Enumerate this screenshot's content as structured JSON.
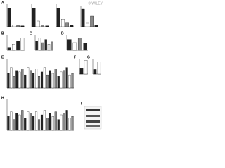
{
  "watermark": "© WILEY",
  "chart_data": [
    {
      "type": "bar",
      "label": "A",
      "values": [
        100,
        8,
        6,
        5
      ],
      "ylim": [
        0,
        120
      ],
      "colors": [
        "#222222",
        "#ffffff",
        "#888888"
      ]
    },
    {
      "type": "bar",
      "values": [
        100,
        30,
        10,
        5
      ],
      "ylim": [
        0,
        120
      ],
      "colors": [
        "#222222",
        "#ffffff",
        "#888888"
      ]
    },
    {
      "type": "bar",
      "values": [
        100,
        40,
        20,
        10
      ],
      "ylim": [
        0,
        120
      ],
      "colors": [
        "#222222",
        "#ffffff",
        "#888888"
      ]
    },
    {
      "type": "bar",
      "values": [
        100,
        20,
        60,
        10
      ],
      "ylim": [
        0,
        120
      ],
      "colors": [
        "#222222",
        "#ffffff",
        "#888888"
      ]
    },
    {
      "type": "bar",
      "label": "B",
      "values": [
        20,
        40,
        60,
        80
      ],
      "ylim": [
        0,
        100
      ],
      "colors": [
        "#222222",
        "#ffffff"
      ]
    },
    {
      "type": "bar",
      "label": "C",
      "values": [
        60,
        80,
        50,
        70,
        40,
        55
      ],
      "ylim": [
        0,
        100
      ],
      "colors": [
        "#222222",
        "#ffffff",
        "#888888"
      ]
    },
    {
      "type": "bar",
      "label": "D",
      "values": [
        70,
        50,
        80,
        45
      ],
      "ylim": [
        0,
        100
      ],
      "colors": [
        "#222222",
        "#ffffff",
        "#888888"
      ]
    },
    {
      "type": "bar",
      "label": "E",
      "values": [
        50,
        70,
        40,
        60,
        55,
        65,
        45,
        70,
        60,
        50,
        65,
        40,
        55,
        70,
        45,
        60,
        50,
        65,
        40,
        55,
        60,
        70,
        45,
        50
      ],
      "ylim": [
        0,
        100
      ],
      "colors": [
        "#222222",
        "#ffffff",
        "#888888"
      ]
    },
    {
      "type": "bar",
      "label": "F",
      "values": [
        40,
        90
      ],
      "ylim": [
        0,
        100
      ],
      "colors": [
        "#222222",
        "#ffffff"
      ]
    },
    {
      "type": "bar",
      "label": "G",
      "values": [
        30,
        80
      ],
      "ylim": [
        0,
        100
      ],
      "colors": [
        "#222222",
        "#ffffff"
      ]
    },
    {
      "type": "bar",
      "label": "H",
      "values": [
        45,
        60,
        35,
        55,
        50,
        65,
        40,
        60,
        55,
        45,
        60,
        35,
        50,
        65,
        40,
        55,
        45,
        60,
        35,
        50,
        55,
        65,
        40,
        45
      ],
      "ylim": [
        0,
        100
      ],
      "colors": [
        "#222222",
        "#ffffff",
        "#888888"
      ]
    }
  ],
  "blot_label": "I"
}
